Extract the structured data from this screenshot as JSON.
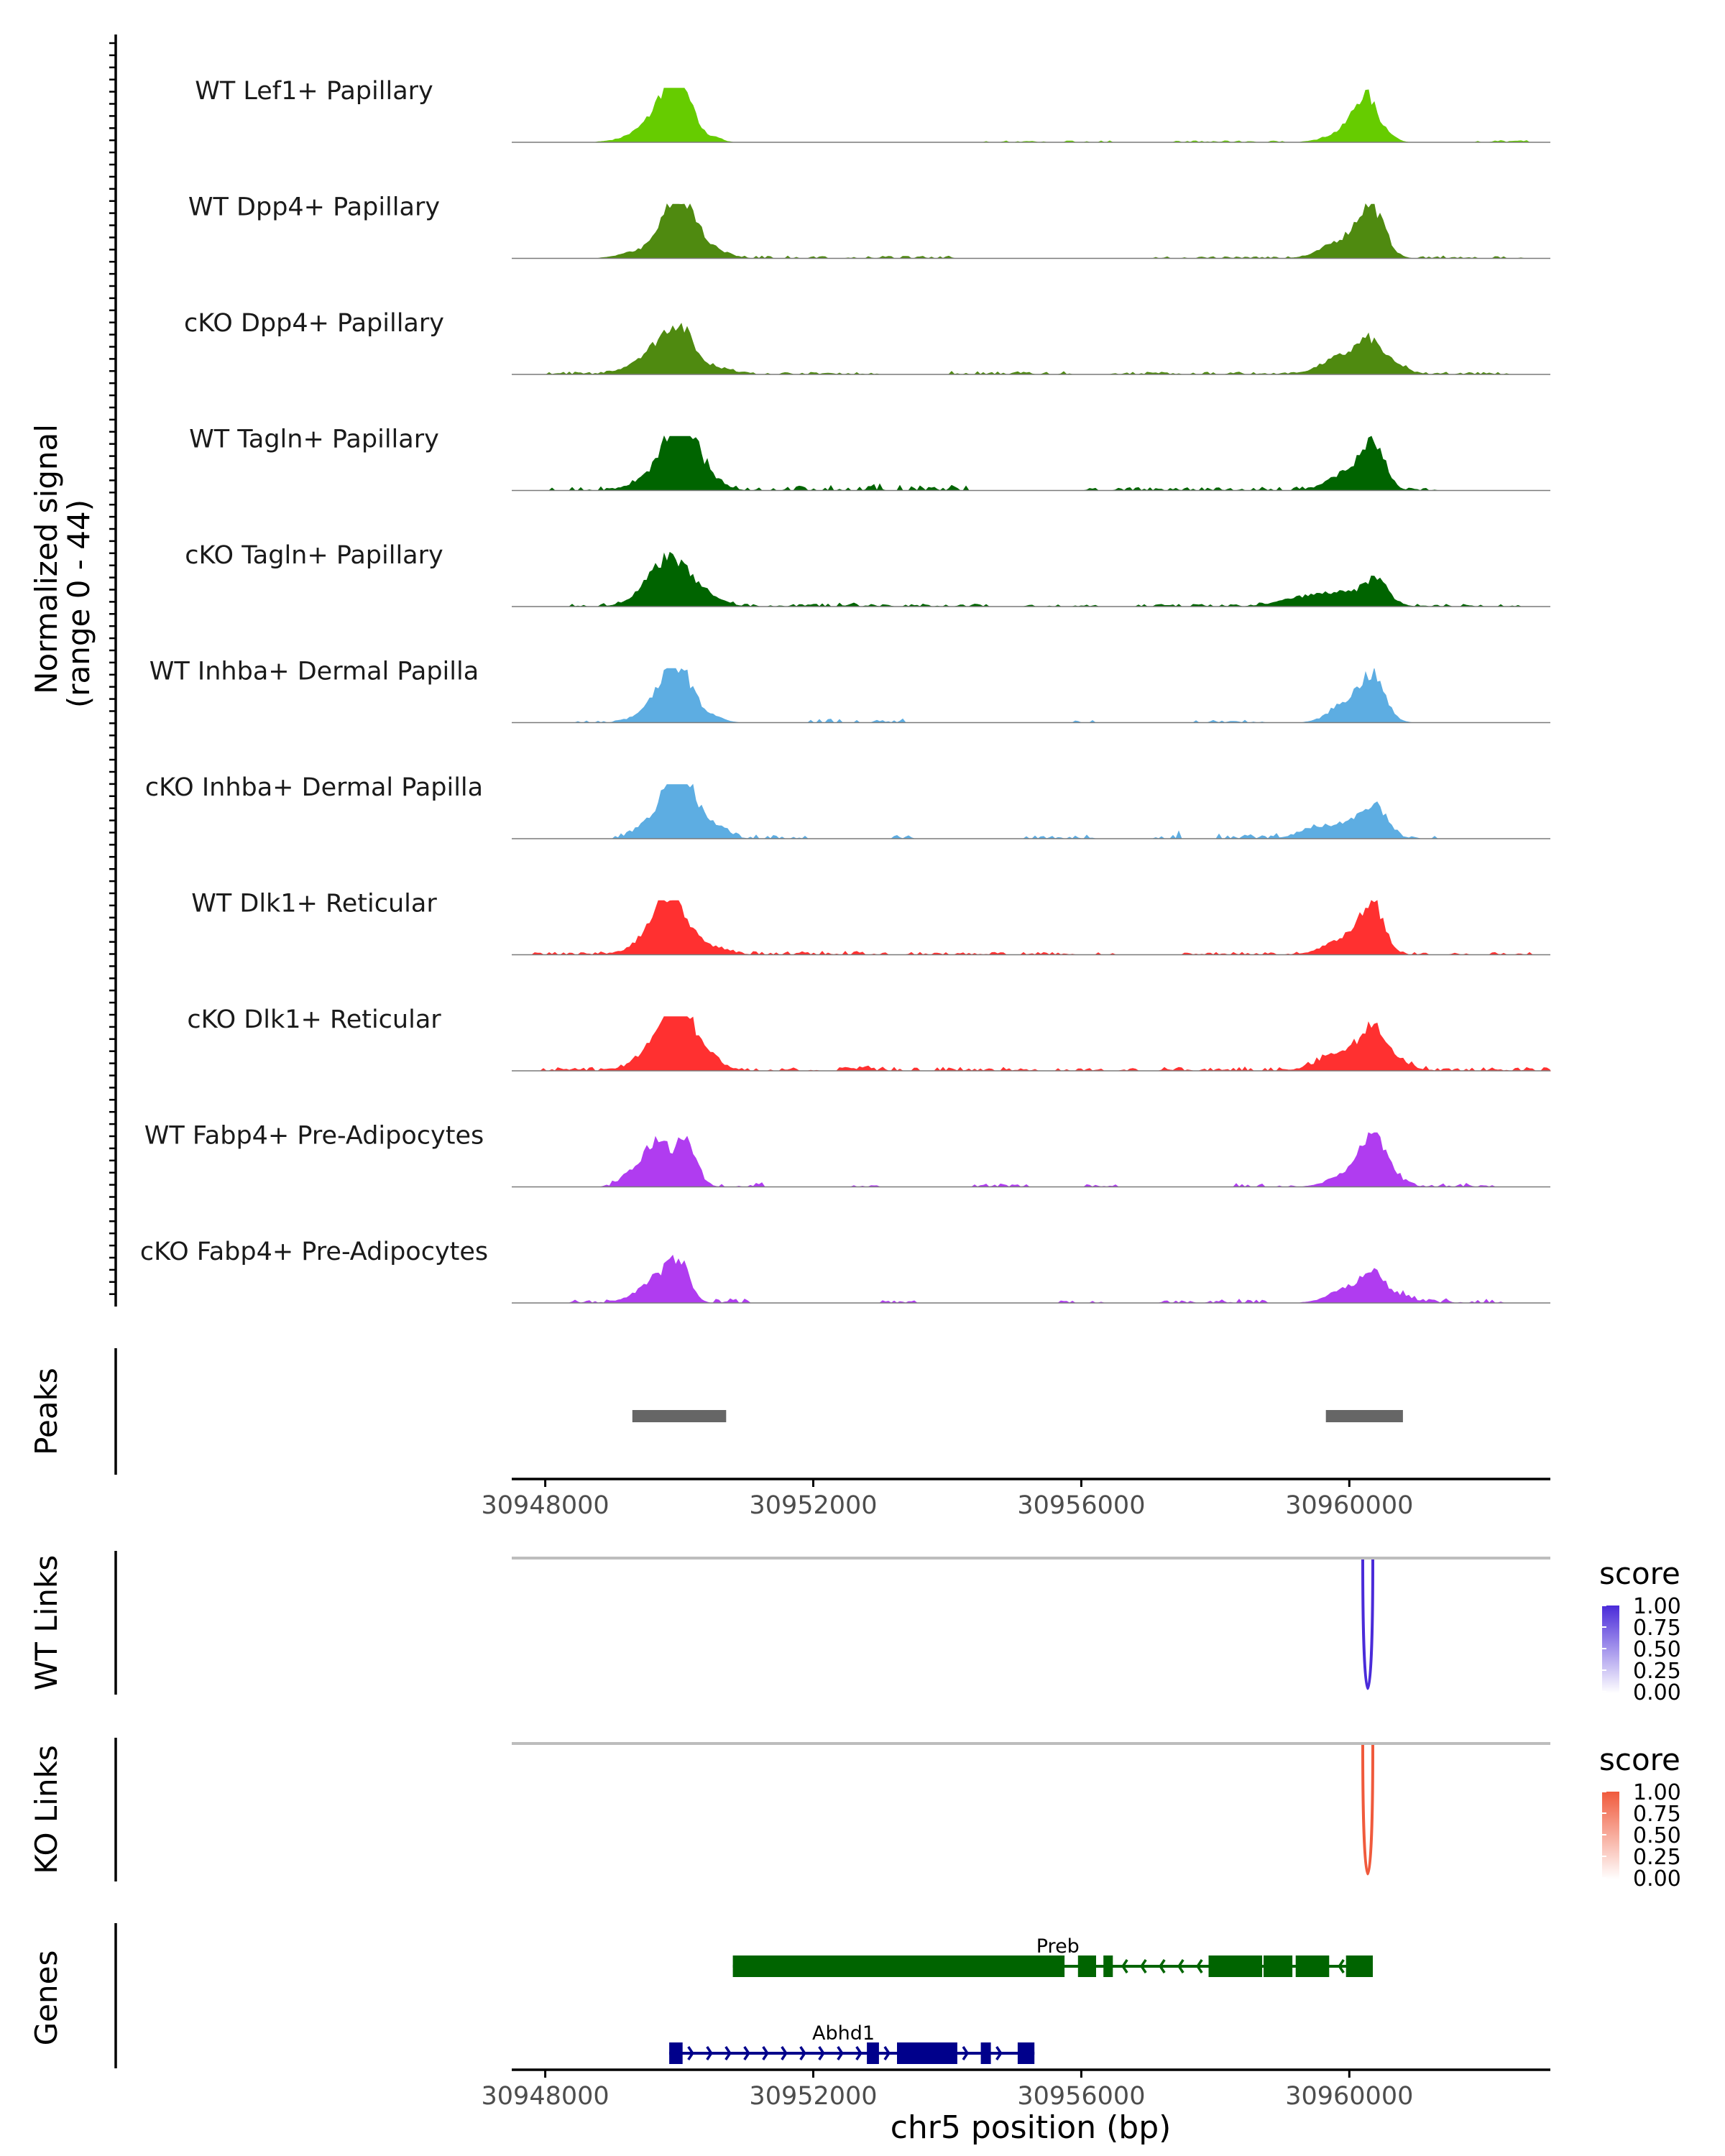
{
  "chart_data": {
    "type": "area",
    "title": "",
    "region": "chr5",
    "xlabel": "chr5 position (bp)",
    "xlim": [
      30947500,
      30963000
    ],
    "x_ticks": [
      30948000,
      30952000,
      30956000,
      30960000
    ],
    "x_tick_labels": [
      "30948000",
      "30952000",
      "30956000",
      "30960000"
    ],
    "coverage": {
      "ylabel_line1": "Normalized signal",
      "ylabel_line2": "(range 0 - 44)",
      "ylim": [
        0,
        44
      ],
      "tracks": [
        {
          "name": "WT Lef1+ Papillary",
          "color": "#66cc00",
          "peaks": [
            [
              30949950,
              44,
              210
            ],
            [
              30949750,
              20,
              350
            ],
            [
              30950550,
              3,
              80
            ],
            [
              30960250,
              38,
              170
            ],
            [
              30959950,
              10,
              260
            ],
            [
              30960600,
              5,
              100
            ]
          ],
          "noise": [
            [
              30955500,
              1.2,
              600
            ],
            [
              30958200,
              1.2,
              600
            ],
            [
              30962300,
              1.5,
              250
            ]
          ]
        },
        {
          "name": "WT Dpp4+ Papillary",
          "color": "#4f8a10",
          "peaks": [
            [
              30949950,
              42,
              220
            ],
            [
              30950200,
              18,
              300
            ],
            [
              30949400,
              6,
              250
            ],
            [
              30960300,
              40,
              180
            ],
            [
              30959900,
              16,
              280
            ],
            [
              30960500,
              8,
              150
            ]
          ],
          "noise": [
            [
              30951500,
              2,
              700
            ],
            [
              30953300,
              2,
              500
            ],
            [
              30958200,
              1.5,
              700
            ],
            [
              30961800,
              2,
              500
            ]
          ]
        },
        {
          "name": "cKO Dpp4+ Papillary",
          "color": "#4f8a10",
          "peaks": [
            [
              30950000,
              38,
              230
            ],
            [
              30949600,
              18,
              300
            ],
            [
              30950600,
              5,
              200
            ],
            [
              30960300,
              24,
              180
            ],
            [
              30959900,
              16,
              300
            ],
            [
              30960650,
              8,
              200
            ]
          ],
          "noise": [
            [
              30948500,
              2,
              300
            ],
            [
              30951700,
              1.8,
              900
            ],
            [
              30955000,
              2.5,
              600
            ],
            [
              30957900,
              2,
              900
            ],
            [
              30961600,
              2,
              500
            ]
          ]
        },
        {
          "name": "WT Tagln+ Papillary",
          "color": "#006400",
          "peaks": [
            [
              30949950,
              44,
              190
            ],
            [
              30950150,
              25,
              200
            ],
            [
              30949600,
              14,
              250
            ],
            [
              30950450,
              10,
              200
            ],
            [
              30960350,
              40,
              170
            ],
            [
              30959950,
              16,
              250
            ]
          ],
          "noise": [
            [
              30948700,
              3,
              400
            ],
            [
              30951600,
              4,
              900
            ],
            [
              30953600,
              5,
              500
            ],
            [
              30956700,
              2.5,
              400
            ],
            [
              30958400,
              3,
              800
            ],
            [
              30961000,
              2,
              300
            ]
          ]
        },
        {
          "name": "cKO Tagln+ Papillary",
          "color": "#006400",
          "peaks": [
            [
              30949900,
              32,
              220
            ],
            [
              30949600,
              18,
              250
            ],
            [
              30950300,
              14,
              250
            ],
            [
              30960400,
              22,
              180
            ],
            [
              30959850,
              12,
              350
            ],
            [
              30959200,
              6,
              300
            ]
          ],
          "noise": [
            [
              30948800,
              2.5,
              300
            ],
            [
              30951500,
              2.5,
              900
            ],
            [
              30953500,
              2.5,
              700
            ],
            [
              30955700,
              2,
              400
            ],
            [
              30957800,
              2,
              600
            ],
            [
              30961600,
              2,
              700
            ]
          ]
        },
        {
          "name": "WT Inhba+ Dermal Papilla",
          "color": "#5dade2",
          "peaks": [
            [
              30950000,
              44,
              210
            ],
            [
              30949700,
              18,
              250
            ],
            [
              30950500,
              5,
              150
            ],
            [
              30960350,
              40,
              180
            ],
            [
              30959950,
              18,
              230
            ]
          ],
          "noise": [
            [
              30948900,
              1.5,
              400
            ],
            [
              30952700,
              3,
              500
            ],
            [
              30956000,
              2,
              120
            ],
            [
              30958200,
              2,
              400
            ]
          ]
        },
        {
          "name": "cKO Inhba+ Dermal Papilla",
          "color": "#5dade2",
          "peaks": [
            [
              30949950,
              44,
              170
            ],
            [
              30950200,
              28,
              200
            ],
            [
              30949650,
              20,
              220
            ],
            [
              30950600,
              8,
              150
            ],
            [
              30960400,
              26,
              180
            ],
            [
              30960000,
              14,
              250
            ],
            [
              30959500,
              8,
              250
            ]
          ],
          "noise": [
            [
              30949200,
              6,
              150
            ],
            [
              30951200,
              3,
              500
            ],
            [
              30953300,
              3,
              200
            ],
            [
              30955700,
              3,
              350
            ],
            [
              30957300,
              8,
              150
            ],
            [
              30958700,
              4,
              500
            ],
            [
              30961000,
              2.5,
              300
            ]
          ]
        },
        {
          "name": "WT Dlk1+ Reticular",
          "color": "#ff3030",
          "peaks": [
            [
              30949900,
              44,
              210
            ],
            [
              30949650,
              18,
              280
            ],
            [
              30950400,
              8,
              250
            ],
            [
              30960350,
              44,
              160
            ],
            [
              30959950,
              16,
              280
            ]
          ],
          "noise": [
            [
              30948800,
              2,
              600
            ],
            [
              30951700,
              3,
              700
            ],
            [
              30953700,
              2,
              700
            ],
            [
              30955600,
              2,
              600
            ],
            [
              30958500,
              2,
              600
            ],
            [
              30961600,
              2,
              700
            ]
          ]
        },
        {
          "name": "cKO Dlk1+ Reticular",
          "color": "#ff3030",
          "peaks": [
            [
              30950000,
              44,
              230
            ],
            [
              30949700,
              24,
              280
            ],
            [
              30950400,
              12,
              220
            ],
            [
              30960350,
              32,
              180
            ],
            [
              30959900,
              18,
              300
            ],
            [
              30960700,
              8,
              200
            ]
          ],
          "noise": [
            [
              30948900,
              3,
              600
            ],
            [
              30951700,
              3,
              900
            ],
            [
              30953700,
              3,
              800
            ],
            [
              30955900,
              2,
              600
            ],
            [
              30958400,
              3,
              800
            ],
            [
              30961700,
              3,
              900
            ]
          ]
        },
        {
          "name": "WT Fabp4+ Pre-Adipocytes",
          "color": "#b03cf0",
          "peaks": [
            [
              30949700,
              36,
              170
            ],
            [
              30950100,
              42,
              150
            ],
            [
              30949400,
              16,
              180
            ],
            [
              30960350,
              44,
              160
            ],
            [
              30960000,
              14,
              250
            ],
            [
              30960600,
              10,
              180
            ]
          ],
          "noise": [
            [
              30949100,
              4,
              150
            ],
            [
              30950800,
              4,
              300
            ],
            [
              30952800,
              2,
              200
            ],
            [
              30954800,
              3,
              250
            ],
            [
              30956200,
              2,
              200
            ],
            [
              30958700,
              3,
              300
            ],
            [
              30961400,
              3,
              500
            ]
          ]
        },
        {
          "name": "cKO Fabp4+ Pre-Adipocytes",
          "color": "#b03cf0",
          "peaks": [
            [
              30949700,
              20,
              170
            ],
            [
              30950000,
              36,
              150
            ],
            [
              30949400,
              8,
              200
            ],
            [
              30960350,
              26,
              170
            ],
            [
              30959950,
              12,
              250
            ],
            [
              30960750,
              6,
              200
            ]
          ],
          "noise": [
            [
              30948700,
              3,
              250
            ],
            [
              30950700,
              4,
              250
            ],
            [
              30953200,
              2,
              200
            ],
            [
              30956000,
              2,
              200
            ],
            [
              30957400,
              2,
              200
            ],
            [
              30958300,
              3,
              300
            ],
            [
              30961500,
              4,
              500
            ]
          ]
        }
      ]
    },
    "peaks_track": {
      "ylabel": "Peaks",
      "regions": [
        [
          30949300,
          30950700
        ],
        [
          30959650,
          30960800
        ]
      ],
      "color": "#666666"
    },
    "links": [
      {
        "ylabel": "WT Links",
        "legend_title": "score",
        "color": "#4a2bd9",
        "legend_ticks": [
          "1.00",
          "0.75",
          "0.50",
          "0.25",
          "0.00"
        ],
        "arcs": [
          {
            "start": 30960200,
            "end": 30960350,
            "score": 0.9
          }
        ]
      },
      {
        "ylabel": "KO Links",
        "legend_title": "score",
        "color": "#f05a3c",
        "legend_ticks": [
          "1.00",
          "0.75",
          "0.50",
          "0.25",
          "0.00"
        ],
        "arcs": [
          {
            "start": 30960200,
            "end": 30960350,
            "score": 0.9
          }
        ]
      }
    ],
    "genes_track": {
      "ylabel": "Genes",
      "genes": [
        {
          "name": "Preb",
          "strand": "-",
          "color": "#006400",
          "start": 30950800,
          "end": 30960350,
          "exons": [
            [
              30950800,
              30955750
            ],
            [
              30955950,
              30956220
            ],
            [
              30956330,
              30956470
            ],
            [
              30957900,
              30958700
            ],
            [
              30958720,
              30959150
            ],
            [
              30959200,
              30959700
            ],
            [
              30959950,
              30960350
            ]
          ]
        },
        {
          "name": "Abhd1",
          "strand": "+",
          "color": "#00008b",
          "start": 30949850,
          "end": 30955300,
          "exons": [
            [
              30949850,
              30950050
            ],
            [
              30952800,
              30952980
            ],
            [
              30953250,
              30954150
            ],
            [
              30954500,
              30954650
            ],
            [
              30955050,
              30955300
            ]
          ]
        }
      ]
    }
  },
  "labels": {
    "signal_line1": "Normalized signal",
    "signal_line2": "(range 0 - 44)",
    "peaks": "Peaks",
    "wt_links": "WT Links",
    "ko_links": "KO Links",
    "genes": "Genes",
    "score_wt": "score",
    "score_ko": "score",
    "xlabel": "chr5 position (bp)"
  }
}
